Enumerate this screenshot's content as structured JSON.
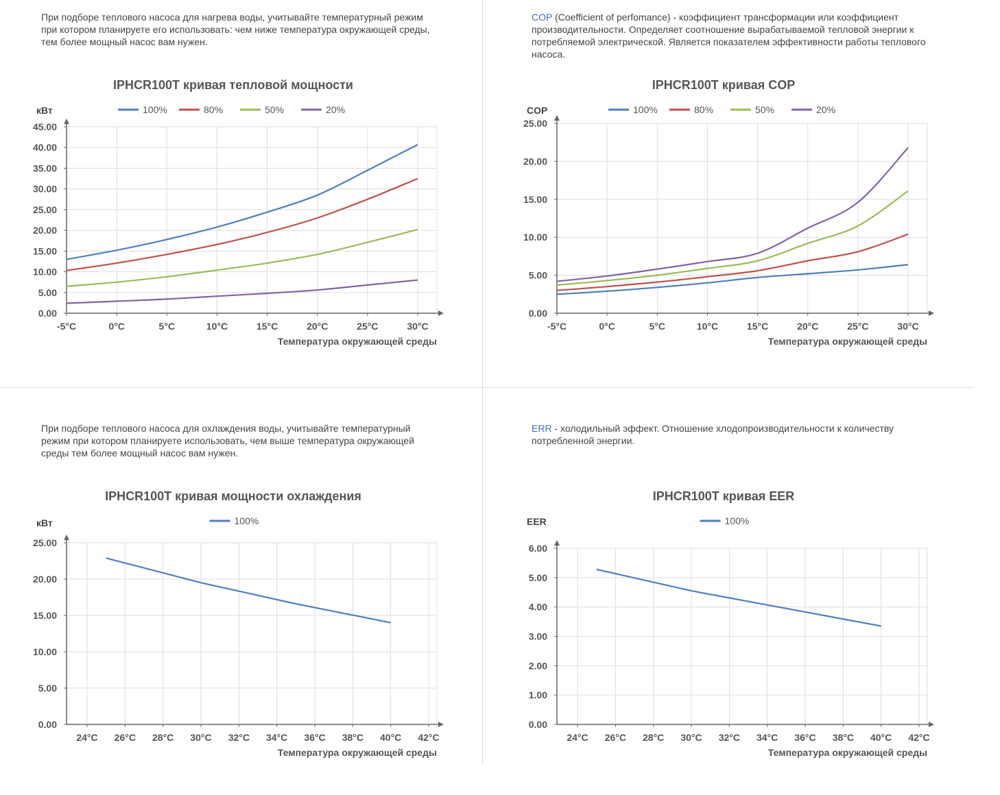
{
  "panels": {
    "heat": {
      "description": "При подборе теплового насоса для нагрева воды, учитывайте температурный режим при котором планируете его использовать: чем ниже температура окружающей среды, тем более мощный насос вам нужен."
    },
    "cop": {
      "term": "COP",
      "description": " (Coefficient of perfomance) - коэффициент трансформации или коэффициент производительности. Определяет соотношение вырабатываемой тепловой энергии к потребляемой электрической. Является показателем эффективности работы теплового насоса."
    },
    "cool": {
      "description": "При подборе теплового насоса для охлаждения воды, учитывайте температурный режим при котором планируете использовать, чем выше температура окружающей среды тем более мощный насос вам нужен."
    },
    "eer": {
      "term": "ERR",
      "description": " - холодильный эффект. Отношение хлодопроизводительности к количеству потребленной энергии."
    }
  },
  "colors": {
    "s100": "#4e7fc0",
    "s80": "#c0504d",
    "s50": "#9bbb59",
    "s20": "#8064a2",
    "grid": "#dddddd",
    "axis": "#666666"
  },
  "chart_data": [
    {
      "id": "heat",
      "type": "line",
      "title": "IPHCR100T кривая тепловой мощности",
      "ylabel": "кВт",
      "xlabel": "Температура окружающей среды",
      "categories": [
        "-5°C",
        "0°C",
        "5°C",
        "10°C",
        "15°C",
        "20°C",
        "25°C",
        "30°C"
      ],
      "x": [
        -5,
        0,
        5,
        10,
        15,
        20,
        25,
        30
      ],
      "xlim": [
        -5,
        30
      ],
      "ylim": [
        0,
        45
      ],
      "yticks": [
        "0.00",
        "5.00",
        "10.00",
        "15.00",
        "20.00",
        "25.00",
        "30.00",
        "35.00",
        "40.00",
        "45.00"
      ],
      "grid": true,
      "legend": "top-center",
      "series": [
        {
          "name": "100%",
          "color": "#4e7fc0",
          "values": [
            13.0,
            15.2,
            17.8,
            20.8,
            24.4,
            28.5,
            34.5,
            40.7
          ]
        },
        {
          "name": "80%",
          "color": "#c0504d",
          "values": [
            10.3,
            12.1,
            14.2,
            16.6,
            19.5,
            23.0,
            27.5,
            32.5
          ]
        },
        {
          "name": "50%",
          "color": "#9bbb59",
          "values": [
            6.5,
            7.5,
            8.8,
            10.4,
            12.1,
            14.2,
            17.1,
            20.2
          ]
        },
        {
          "name": "20%",
          "color": "#8064a2",
          "values": [
            2.4,
            2.9,
            3.4,
            4.1,
            4.8,
            5.6,
            6.8,
            8.0
          ]
        }
      ]
    },
    {
      "id": "cop",
      "type": "line",
      "title": "IPHCR100T кривая COP",
      "ylabel": "COP",
      "xlabel": "Температура окружающей среды",
      "categories": [
        "-5°C",
        "0°C",
        "5°C",
        "10°C",
        "15°C",
        "20°C",
        "25°C",
        "30°C"
      ],
      "x": [
        -5,
        0,
        5,
        10,
        15,
        20,
        25,
        30
      ],
      "xlim": [
        -5,
        30
      ],
      "ylim": [
        0,
        25
      ],
      "yticks": [
        "0.00",
        "5.00",
        "10.00",
        "15.00",
        "20.00",
        "25.00"
      ],
      "grid": true,
      "legend": "top-center",
      "series": [
        {
          "name": "100%",
          "color": "#4e7fc0",
          "values": [
            2.5,
            2.9,
            3.4,
            4.0,
            4.7,
            5.2,
            5.7,
            6.4
          ]
        },
        {
          "name": "80%",
          "color": "#c0504d",
          "values": [
            3.0,
            3.5,
            4.1,
            4.8,
            5.6,
            6.9,
            8.1,
            10.4
          ]
        },
        {
          "name": "50%",
          "color": "#9bbb59",
          "values": [
            3.7,
            4.3,
            5.0,
            5.9,
            6.9,
            9.2,
            11.5,
            16.1
          ]
        },
        {
          "name": "20%",
          "color": "#8064a2",
          "values": [
            4.2,
            4.9,
            5.8,
            6.8,
            7.9,
            11.2,
            14.6,
            21.8
          ]
        }
      ]
    },
    {
      "id": "cool",
      "type": "line",
      "title": "IPHCR100T кривая мощности охлаждения",
      "ylabel": "кВт",
      "xlabel": "Температура окружающей среды",
      "categories": [
        "24°C",
        "26°C",
        "28°C",
        "30°C",
        "32°C",
        "34°C",
        "36°C",
        "38°C",
        "40°C",
        "42°C"
      ],
      "x": [
        24,
        26,
        28,
        30,
        32,
        34,
        36,
        38,
        40,
        42
      ],
      "xlim": [
        24,
        42
      ],
      "ylim": [
        0,
        25
      ],
      "yticks": [
        "0.00",
        "5.00",
        "10.00",
        "15.00",
        "20.00",
        "25.00"
      ],
      "grid": true,
      "legend": "top-center",
      "series": [
        {
          "name": "100%",
          "color": "#4e7fc0",
          "points": [
            [
              25,
              22.9
            ],
            [
              30,
              19.5
            ],
            [
              35,
              16.6
            ],
            [
              40,
              14.0
            ]
          ]
        }
      ]
    },
    {
      "id": "eer",
      "type": "line",
      "title": "IPHCR100T кривая EER",
      "ylabel": "EER",
      "xlabel": "Температура окружающей среды",
      "categories": [
        "24°C",
        "26°C",
        "28°C",
        "30°C",
        "32°C",
        "34°C",
        "36°C",
        "38°C",
        "40°C",
        "42°C"
      ],
      "x": [
        24,
        26,
        28,
        30,
        32,
        34,
        36,
        38,
        40,
        42
      ],
      "xlim": [
        24,
        42
      ],
      "ylim": [
        0,
        6
      ],
      "yticks": [
        "0.00",
        "1.00",
        "2.00",
        "3.00",
        "4.00",
        "5.00",
        "6.00"
      ],
      "grid": true,
      "legend": "top-center",
      "series": [
        {
          "name": "100%",
          "color": "#4e7fc0",
          "points": [
            [
              25,
              5.28
            ],
            [
              30,
              4.55
            ],
            [
              35,
              3.95
            ],
            [
              40,
              3.35
            ]
          ]
        }
      ]
    }
  ]
}
